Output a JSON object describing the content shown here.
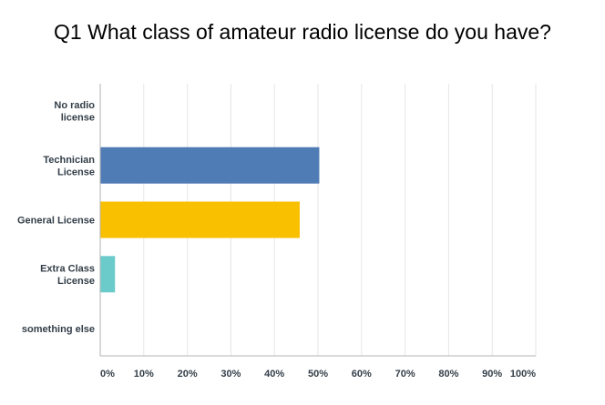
{
  "chart_data": {
    "type": "bar",
    "orientation": "horizontal",
    "title": "Q1 What class of amateur radio license do you have?",
    "categories": [
      [
        "No radio",
        "license"
      ],
      [
        "Technician",
        "License"
      ],
      [
        "General License"
      ],
      [
        "Extra Class",
        "License"
      ],
      [
        "something else"
      ]
    ],
    "values": [
      0,
      50.3,
      45.8,
      3.4,
      0
    ],
    "bar_colors": [
      "#cccccc",
      "#507cb6",
      "#f9c000",
      "#6bcbca",
      "#cccccc"
    ],
    "xlim": [
      0,
      100
    ],
    "x_ticks": [
      "0%",
      "10%",
      "20%",
      "30%",
      "40%",
      "50%",
      "60%",
      "70%",
      "80%",
      "90%",
      "100%"
    ],
    "grid": "vertical",
    "legend": "none",
    "xlabel": "",
    "ylabel": ""
  },
  "colors": {
    "grid": "#e6e6e6",
    "axis": "#b3b3b3"
  }
}
